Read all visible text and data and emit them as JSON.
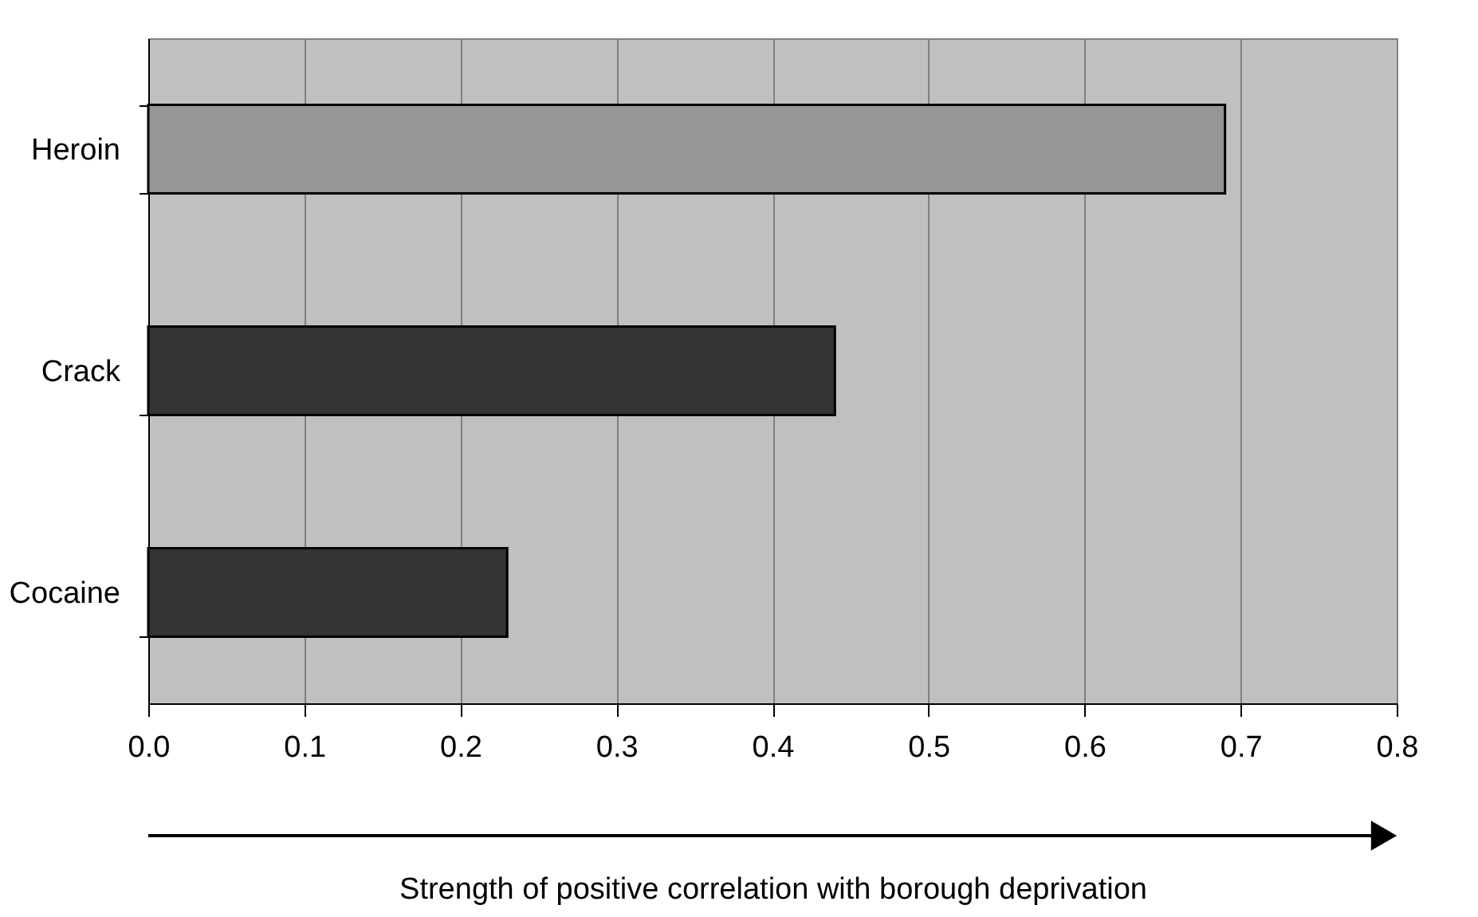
{
  "chart_data": {
    "type": "bar",
    "orientation": "horizontal",
    "categories": [
      "Heroin",
      "Crack",
      "Cocaine"
    ],
    "values": [
      0.69,
      0.44,
      0.23
    ],
    "colors": [
      "#969696",
      "#333333",
      "#333333"
    ],
    "xlabel": "Strength of positive correlation with borough deprivation",
    "xlim": [
      0,
      0.8
    ],
    "xticks": [
      {
        "value": 0,
        "label": "0.0"
      },
      0.1,
      0.2,
      0.3,
      0.4,
      0.5,
      0.6,
      0.7,
      0.8
    ],
    "grid": "x"
  }
}
